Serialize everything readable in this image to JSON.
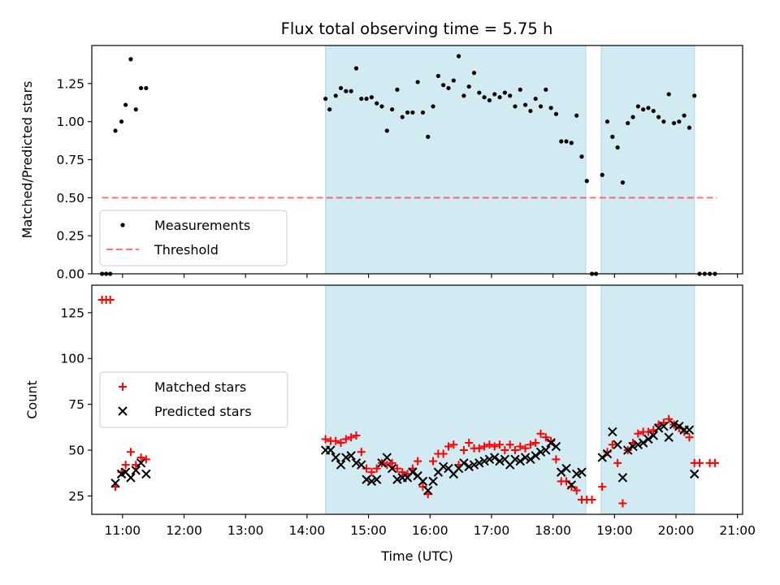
{
  "title": "Flux total observing time = 5.75 h",
  "colors": {
    "shade": "#add8e6",
    "threshold": "#ff0000",
    "matched": "#ff0000",
    "predicted": "#000000",
    "measure": "#000000"
  },
  "chart_data": [
    {
      "type": "scatter",
      "ylabel": "Matched/Predicted stars",
      "xlim": [
        "10:30",
        "21:05"
      ],
      "ylim": [
        0,
        1.5
      ],
      "yticks": [
        "0.00",
        "0.25",
        "0.50",
        "0.75",
        "1.00",
        "1.25"
      ],
      "grid": false,
      "legend_position": "lower-left",
      "observing_windows": [
        [
          "14:18",
          "18:32"
        ],
        [
          "18:47",
          "20:18"
        ]
      ],
      "threshold": {
        "name": "Threshold",
        "value": 0.5,
        "x_range": [
          "10:40",
          "20:40"
        ]
      },
      "series": [
        {
          "name": "Measurements",
          "points": [
            [
              "10:40",
              0
            ],
            [
              "10:44",
              0
            ],
            [
              "10:48",
              0
            ],
            [
              "10:53",
              0.94
            ],
            [
              "10:59",
              1.0
            ],
            [
              "11:03",
              1.11
            ],
            [
              "11:08",
              1.41
            ],
            [
              "11:13",
              1.08
            ],
            [
              "11:18",
              1.22
            ],
            [
              "11:23",
              1.22
            ],
            [
              "14:18",
              1.15
            ],
            [
              "14:22",
              1.08
            ],
            [
              "14:28",
              1.17
            ],
            [
              "14:33",
              1.22
            ],
            [
              "14:38",
              1.2
            ],
            [
              "14:43",
              1.2
            ],
            [
              "14:48",
              1.35
            ],
            [
              "14:53",
              1.15
            ],
            [
              "14:58",
              1.15
            ],
            [
              "15:03",
              1.16
            ],
            [
              "15:08",
              1.12
            ],
            [
              "15:13",
              1.1
            ],
            [
              "15:18",
              0.94
            ],
            [
              "15:23",
              1.08
            ],
            [
              "15:28",
              1.21
            ],
            [
              "15:33",
              1.03
            ],
            [
              "15:38",
              1.06
            ],
            [
              "15:43",
              1.06
            ],
            [
              "15:48",
              1.26
            ],
            [
              "15:53",
              1.06
            ],
            [
              "15:58",
              0.9
            ],
            [
              "16:03",
              1.1
            ],
            [
              "16:08",
              1.3
            ],
            [
              "16:13",
              1.24
            ],
            [
              "16:18",
              1.22
            ],
            [
              "16:23",
              1.27
            ],
            [
              "16:28",
              1.43
            ],
            [
              "16:33",
              1.17
            ],
            [
              "16:38",
              1.23
            ],
            [
              "16:43",
              1.32
            ],
            [
              "16:48",
              1.19
            ],
            [
              "16:53",
              1.16
            ],
            [
              "16:58",
              1.14
            ],
            [
              "17:03",
              1.18
            ],
            [
              "17:08",
              1.16
            ],
            [
              "17:13",
              1.19
            ],
            [
              "17:18",
              1.17
            ],
            [
              "17:23",
              1.1
            ],
            [
              "17:28",
              1.21
            ],
            [
              "17:33",
              1.11
            ],
            [
              "17:38",
              1.07
            ],
            [
              "17:43",
              1.15
            ],
            [
              "17:48",
              1.1
            ],
            [
              "17:53",
              1.21
            ],
            [
              "17:58",
              1.09
            ],
            [
              "18:03",
              1.05
            ],
            [
              "18:08",
              0.87
            ],
            [
              "18:13",
              0.87
            ],
            [
              "18:18",
              0.86
            ],
            [
              "18:23",
              1.04
            ],
            [
              "18:28",
              0.77
            ],
            [
              "18:33",
              0.61
            ],
            [
              "18:38",
              0
            ],
            [
              "18:42",
              0
            ],
            [
              "18:48",
              0.65
            ],
            [
              "18:53",
              1.0
            ],
            [
              "18:58",
              0.9
            ],
            [
              "19:03",
              0.83
            ],
            [
              "19:08",
              0.6
            ],
            [
              "19:13",
              0.99
            ],
            [
              "19:18",
              1.03
            ],
            [
              "19:23",
              1.1
            ],
            [
              "19:28",
              1.08
            ],
            [
              "19:33",
              1.09
            ],
            [
              "19:38",
              1.07
            ],
            [
              "19:43",
              1.03
            ],
            [
              "19:48",
              1.0
            ],
            [
              "19:53",
              1.18
            ],
            [
              "19:58",
              0.99
            ],
            [
              "20:03",
              1.0
            ],
            [
              "20:08",
              1.04
            ],
            [
              "20:13",
              0.96
            ],
            [
              "20:18",
              1.17
            ],
            [
              "20:23",
              0
            ],
            [
              "20:28",
              0
            ],
            [
              "20:33",
              0
            ],
            [
              "20:38",
              0
            ]
          ]
        }
      ]
    },
    {
      "type": "scatter",
      "xlabel": "Time (UTC)",
      "ylabel": "Count",
      "xlim": [
        "10:30",
        "21:05"
      ],
      "ylim": [
        15,
        140
      ],
      "yticks": [
        "25",
        "50",
        "75",
        "100",
        "125"
      ],
      "xticks": [
        "11:00",
        "12:00",
        "13:00",
        "14:00",
        "15:00",
        "16:00",
        "17:00",
        "18:00",
        "19:00",
        "20:00",
        "21:00"
      ],
      "grid": false,
      "legend_position": "center-left",
      "observing_windows": [
        [
          "14:18",
          "18:32"
        ],
        [
          "18:47",
          "20:18"
        ]
      ],
      "series": [
        {
          "name": "Matched stars",
          "marker": "+",
          "points": [
            [
              "10:40",
              132
            ],
            [
              "10:44",
              132
            ],
            [
              "10:48",
              132
            ],
            [
              "10:53",
              30
            ],
            [
              "10:59",
              38
            ],
            [
              "11:03",
              42
            ],
            [
              "11:08",
              49
            ],
            [
              "11:13",
              42
            ],
            [
              "11:18",
              46
            ],
            [
              "11:23",
              45
            ],
            [
              "14:18",
              56
            ],
            [
              "14:23",
              55
            ],
            [
              "14:28",
              55
            ],
            [
              "14:33",
              54
            ],
            [
              "14:38",
              56
            ],
            [
              "14:43",
              57
            ],
            [
              "14:48",
              58
            ],
            [
              "14:53",
              49
            ],
            [
              "14:58",
              40
            ],
            [
              "15:03",
              38
            ],
            [
              "15:08",
              40
            ],
            [
              "15:13",
              43
            ],
            [
              "15:18",
              42
            ],
            [
              "15:23",
              43
            ],
            [
              "15:28",
              40
            ],
            [
              "15:33",
              38
            ],
            [
              "15:38",
              37
            ],
            [
              "15:43",
              40
            ],
            [
              "15:48",
              44
            ],
            [
              "15:53",
              30
            ],
            [
              "15:58",
              26
            ],
            [
              "16:03",
              44
            ],
            [
              "16:08",
              48
            ],
            [
              "16:13",
              48
            ],
            [
              "16:18",
              52
            ],
            [
              "16:23",
              53
            ],
            [
              "16:28",
              42
            ],
            [
              "16:33",
              50
            ],
            [
              "16:38",
              54
            ],
            [
              "16:43",
              51
            ],
            [
              "16:48",
              51
            ],
            [
              "16:53",
              52
            ],
            [
              "16:58",
              53
            ],
            [
              "17:03",
              52
            ],
            [
              "17:08",
              53
            ],
            [
              "17:13",
              50
            ],
            [
              "17:18",
              53
            ],
            [
              "17:23",
              50
            ],
            [
              "17:28",
              52
            ],
            [
              "17:33",
              51
            ],
            [
              "17:38",
              53
            ],
            [
              "17:43",
              54
            ],
            [
              "17:48",
              59
            ],
            [
              "17:53",
              57
            ],
            [
              "17:58",
              55
            ],
            [
              "18:03",
              45
            ],
            [
              "18:08",
              33
            ],
            [
              "18:13",
              33
            ],
            [
              "18:18",
              30
            ],
            [
              "18:23",
              28
            ],
            [
              "18:28",
              23
            ],
            [
              "18:33",
              23
            ],
            [
              "18:38",
              23
            ],
            [
              "18:48",
              30
            ],
            [
              "18:53",
              49
            ],
            [
              "18:58",
              53
            ],
            [
              "19:03",
              43
            ],
            [
              "19:08",
              21
            ],
            [
              "19:13",
              50
            ],
            [
              "19:18",
              54
            ],
            [
              "19:23",
              59
            ],
            [
              "19:28",
              60
            ],
            [
              "19:33",
              60
            ],
            [
              "19:38",
              61
            ],
            [
              "19:43",
              64
            ],
            [
              "19:48",
              65
            ],
            [
              "19:53",
              67
            ],
            [
              "19:58",
              64
            ],
            [
              "20:03",
              62
            ],
            [
              "20:08",
              60
            ],
            [
              "20:13",
              57
            ],
            [
              "20:18",
              43
            ],
            [
              "20:23",
              43
            ],
            [
              "20:33",
              43
            ],
            [
              "20:38",
              43
            ]
          ]
        },
        {
          "name": "Predicted stars",
          "marker": "x",
          "points": [
            [
              "10:53",
              32
            ],
            [
              "10:59",
              37
            ],
            [
              "11:03",
              38
            ],
            [
              "11:08",
              35
            ],
            [
              "11:13",
              39
            ],
            [
              "11:18",
              43
            ],
            [
              "11:23",
              37
            ],
            [
              "14:18",
              50
            ],
            [
              "14:23",
              50
            ],
            [
              "14:28",
              46
            ],
            [
              "14:33",
              42
            ],
            [
              "14:38",
              46
            ],
            [
              "14:43",
              47
            ],
            [
              "14:48",
              43
            ],
            [
              "14:53",
              42
            ],
            [
              "14:58",
              34
            ],
            [
              "15:03",
              33
            ],
            [
              "15:08",
              34
            ],
            [
              "15:13",
              43
            ],
            [
              "15:18",
              46
            ],
            [
              "15:23",
              40
            ],
            [
              "15:28",
              34
            ],
            [
              "15:33",
              35
            ],
            [
              "15:38",
              35
            ],
            [
              "15:43",
              38
            ],
            [
              "15:48",
              36
            ],
            [
              "15:53",
              33
            ],
            [
              "15:58",
              28
            ],
            [
              "16:03",
              33
            ],
            [
              "16:08",
              38
            ],
            [
              "16:13",
              41
            ],
            [
              "16:18",
              40
            ],
            [
              "16:23",
              37
            ],
            [
              "16:28",
              40
            ],
            [
              "16:33",
              43
            ],
            [
              "16:38",
              41
            ],
            [
              "16:43",
              42
            ],
            [
              "16:48",
              43
            ],
            [
              "16:53",
              44
            ],
            [
              "16:58",
              45
            ],
            [
              "17:03",
              46
            ],
            [
              "17:08",
              44
            ],
            [
              "17:13",
              45
            ],
            [
              "17:18",
              42
            ],
            [
              "17:23",
              45
            ],
            [
              "17:28",
              44
            ],
            [
              "17:33",
              46
            ],
            [
              "17:38",
              45
            ],
            [
              "17:43",
              47
            ],
            [
              "17:48",
              49
            ],
            [
              "17:53",
              50
            ],
            [
              "17:58",
              54
            ],
            [
              "18:03",
              52
            ],
            [
              "18:08",
              38
            ],
            [
              "18:13",
              40
            ],
            [
              "18:18",
              31
            ],
            [
              "18:23",
              37
            ],
            [
              "18:28",
              38
            ],
            [
              "18:48",
              46
            ],
            [
              "18:53",
              48
            ],
            [
              "18:58",
              60
            ],
            [
              "19:03",
              53
            ],
            [
              "19:08",
              35
            ],
            [
              "19:13",
              50
            ],
            [
              "19:18",
              52
            ],
            [
              "19:23",
              53
            ],
            [
              "19:28",
              54
            ],
            [
              "19:33",
              56
            ],
            [
              "19:38",
              58
            ],
            [
              "19:43",
              62
            ],
            [
              "19:48",
              63
            ],
            [
              "19:53",
              57
            ],
            [
              "19:58",
              64
            ],
            [
              "20:03",
              63
            ],
            [
              "20:08",
              61
            ],
            [
              "20:13",
              61
            ],
            [
              "20:18",
              37
            ]
          ]
        }
      ]
    }
  ]
}
